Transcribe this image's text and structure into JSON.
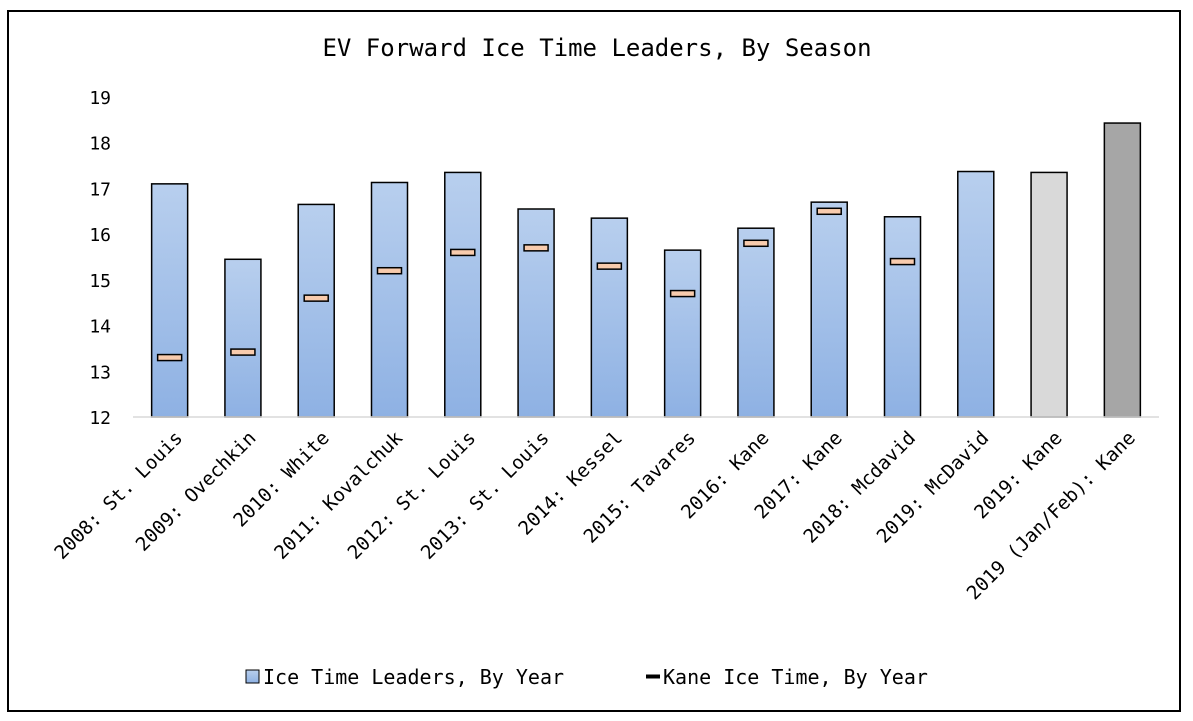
{
  "chart_data": {
    "type": "bar",
    "title": "EV Forward Ice Time Leaders, By Season",
    "xlabel": "",
    "ylabel": "",
    "ylim": [
      12,
      19
    ],
    "yticks": [
      "12",
      "13",
      "14",
      "15",
      "16",
      "17",
      "18",
      "19"
    ],
    "grid": false,
    "legend_position": "bottom",
    "categories": [
      "2008: St. Louis",
      "2009: Ovechkin",
      "2010: White",
      "2011: Kovalchuk",
      "2012: St. Louis",
      "2013: St. Louis",
      "2014: Kessel",
      "2015: Tavares",
      "2016: Kane",
      "2017: Kane",
      "2018: Mcdavid",
      "2019: McDavid",
      "2019: Kane",
      "2019 (Jan/Feb): Kane"
    ],
    "series": [
      {
        "name": "Ice Time Leaders, By Year",
        "kind": "bar",
        "values": [
          17.1,
          15.45,
          16.65,
          17.13,
          17.35,
          16.55,
          16.35,
          15.65,
          16.13,
          16.7,
          16.38,
          17.37,
          17.35,
          18.43
        ],
        "colors": [
          "#a9c4ea",
          "#a9c4ea",
          "#a9c4ea",
          "#a9c4ea",
          "#a9c4ea",
          "#a9c4ea",
          "#a9c4ea",
          "#a9c4ea",
          "#a9c4ea",
          "#a9c4ea",
          "#a9c4ea",
          "#a9c4ea",
          "#d9d9d9",
          "#a6a6a6"
        ]
      },
      {
        "name": "Kane Ice Time, By Year",
        "kind": "marker",
        "values": [
          13.3,
          13.42,
          14.6,
          15.2,
          15.6,
          15.7,
          15.3,
          14.7,
          15.8,
          16.5,
          15.4,
          null,
          null,
          null
        ],
        "color": "#f8cbad"
      }
    ]
  }
}
